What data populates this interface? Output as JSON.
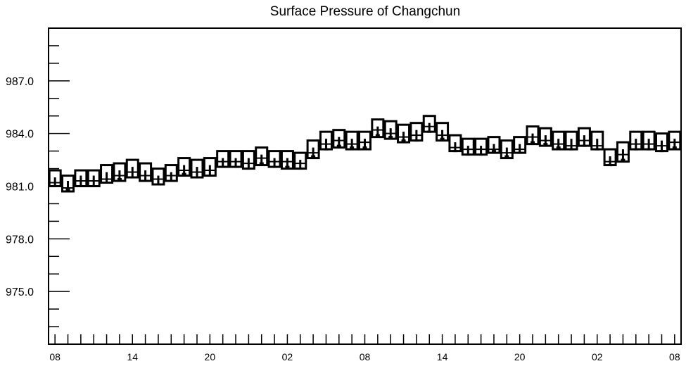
{
  "chart_data": {
    "type": "box",
    "title": "Surface Pressure of Changchun",
    "xlabel": "",
    "ylabel": "",
    "ylim": [
      972.0,
      990.0
    ],
    "y_ticks": [
      "975.0",
      "978.0",
      "981.0",
      "984.0",
      "987.0"
    ],
    "x_ticks": [
      "08",
      "14",
      "20",
      "02",
      "08",
      "14",
      "20",
      "02",
      "08"
    ],
    "x_tick_positions": [
      0,
      6,
      12,
      18,
      24,
      30,
      36,
      42,
      48
    ],
    "x_range": [
      -0.5,
      48.5
    ],
    "grid": false,
    "legend": "none",
    "series": [
      {
        "x": [
          0,
          1,
          2,
          3,
          4,
          5,
          6,
          7,
          8,
          9,
          10,
          11,
          12,
          13,
          14,
          15,
          16,
          17,
          18,
          19,
          20,
          21,
          22,
          23,
          24,
          25,
          26,
          27,
          28,
          29,
          30,
          31,
          32,
          33,
          34,
          35,
          36,
          37,
          38,
          39,
          40,
          41,
          42,
          43,
          44,
          45,
          46,
          47,
          48
        ],
        "max": [
          981.9,
          981.6,
          981.9,
          981.9,
          982.2,
          982.3,
          982.5,
          982.3,
          982.0,
          982.2,
          982.6,
          982.5,
          982.6,
          983.0,
          983.0,
          983.0,
          983.2,
          983.0,
          983.0,
          982.9,
          983.6,
          984.1,
          984.2,
          984.1,
          984.1,
          984.8,
          984.7,
          984.5,
          984.6,
          985.0,
          984.6,
          983.9,
          983.7,
          983.7,
          983.8,
          983.6,
          983.8,
          984.4,
          984.3,
          984.1,
          984.1,
          984.3,
          984.1,
          983.1,
          983.5,
          984.1,
          984.1,
          984.0,
          984.1
        ],
        "p75": [
          981.5,
          981.3,
          981.6,
          981.6,
          981.8,
          981.9,
          982.1,
          981.9,
          981.6,
          981.8,
          982.2,
          982.1,
          982.2,
          982.6,
          982.6,
          982.6,
          982.8,
          982.6,
          982.6,
          982.5,
          983.2,
          983.7,
          983.8,
          983.7,
          983.7,
          984.4,
          984.3,
          984.1,
          984.2,
          984.6,
          984.2,
          983.5,
          983.3,
          983.3,
          983.4,
          983.2,
          983.4,
          984.0,
          983.9,
          983.7,
          983.7,
          983.9,
          983.7,
          982.7,
          983.1,
          983.7,
          983.7,
          983.6,
          983.7
        ],
        "median": [
          981.2,
          980.9,
          981.3,
          981.3,
          981.4,
          981.6,
          981.8,
          981.6,
          981.4,
          981.6,
          981.9,
          981.8,
          981.9,
          982.4,
          982.4,
          982.3,
          982.6,
          982.4,
          982.4,
          982.3,
          982.9,
          983.4,
          983.6,
          983.4,
          983.5,
          984.2,
          984.0,
          983.8,
          983.9,
          984.4,
          983.9,
          983.2,
          983.1,
          983.1,
          983.1,
          982.9,
          983.1,
          983.8,
          983.6,
          983.4,
          983.3,
          983.6,
          983.3,
          982.4,
          982.8,
          983.4,
          983.4,
          983.3,
          983.5
        ],
        "p25": [
          981.0,
          980.8,
          981.0,
          981.0,
          981.2,
          981.4,
          981.5,
          981.3,
          981.1,
          981.3,
          981.7,
          981.5,
          981.6,
          982.1,
          982.1,
          982.0,
          982.3,
          982.1,
          982.1,
          982.0,
          982.7,
          983.1,
          983.3,
          983.2,
          983.2,
          983.9,
          983.8,
          983.6,
          983.6,
          984.1,
          983.7,
          983.0,
          982.8,
          982.8,
          983.0,
          982.7,
          982.9,
          983.5,
          983.4,
          983.2,
          983.1,
          983.3,
          983.1,
          982.2,
          982.5,
          983.1,
          983.1,
          983.0,
          983.2
        ],
        "min": [
          981.0,
          980.7,
          981.0,
          981.0,
          981.2,
          981.3,
          981.5,
          981.3,
          981.1,
          981.3,
          981.6,
          981.5,
          981.6,
          982.1,
          982.1,
          982.0,
          982.2,
          982.1,
          982.0,
          982.0,
          982.6,
          983.1,
          983.2,
          983.1,
          983.1,
          983.8,
          983.7,
          983.5,
          983.6,
          984.1,
          983.6,
          983.0,
          982.8,
          982.8,
          982.9,
          982.6,
          982.9,
          983.4,
          983.3,
          983.1,
          983.1,
          983.3,
          983.1,
          982.2,
          982.4,
          983.1,
          983.1,
          983.0,
          983.1
        ]
      }
    ]
  }
}
